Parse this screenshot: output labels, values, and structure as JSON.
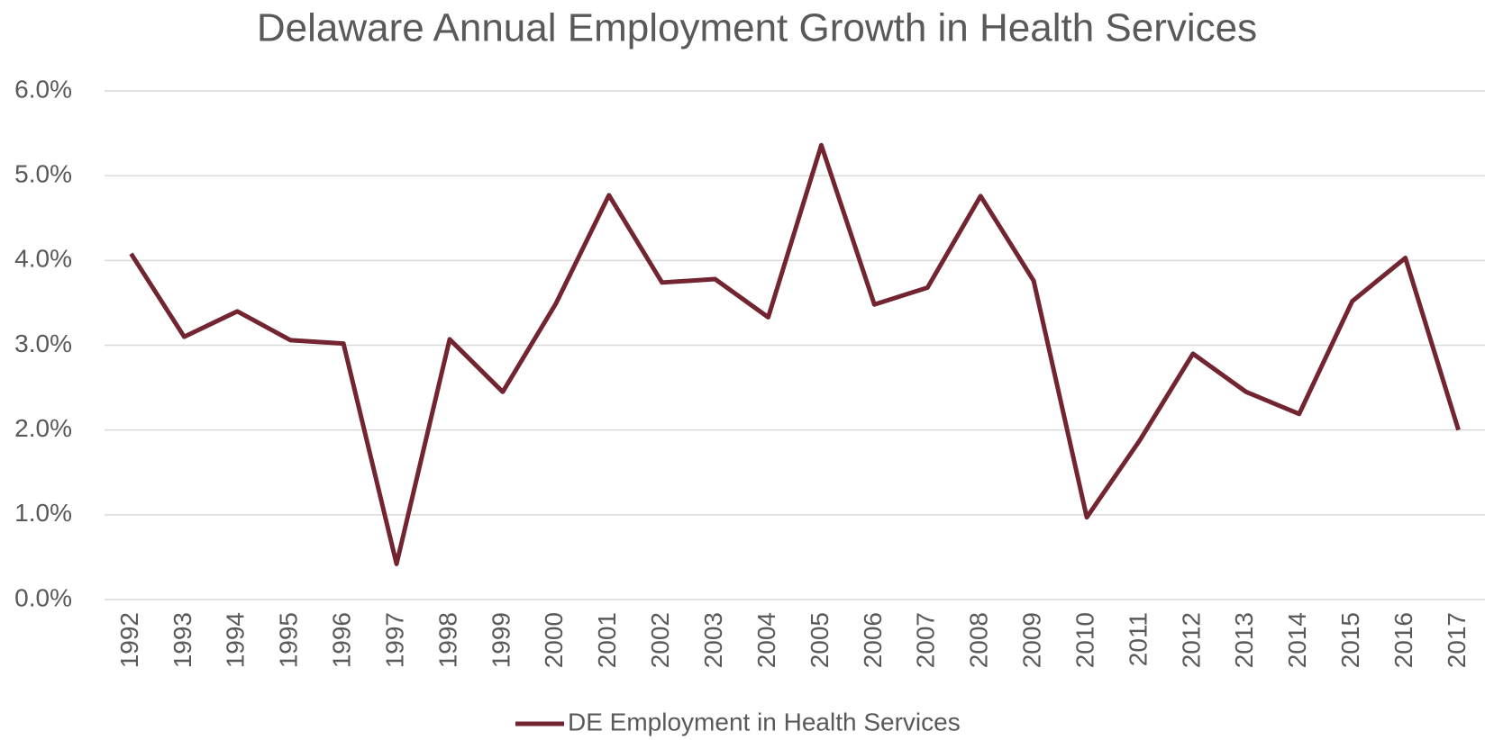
{
  "chart_data": {
    "type": "line",
    "title": "Delaware Annual Employment Growth in Health Services",
    "categories": [
      "1992",
      "1993",
      "1994",
      "1995",
      "1996",
      "1997",
      "1998",
      "1999",
      "2000",
      "2001",
      "2002",
      "2003",
      "2004",
      "2005",
      "2006",
      "2007",
      "2008",
      "2009",
      "2010",
      "2011",
      "2012",
      "2013",
      "2014",
      "2015",
      "2016",
      "2017"
    ],
    "series": [
      {
        "name": "DE Employment in Health Services",
        "color": "#722530",
        "values": [
          4.08,
          3.1,
          3.4,
          3.06,
          3.02,
          0.42,
          3.07,
          2.45,
          3.49,
          4.77,
          3.74,
          3.78,
          3.33,
          5.36,
          3.48,
          3.68,
          4.76,
          3.76,
          0.97,
          1.88,
          2.9,
          2.45,
          2.19,
          3.52,
          4.03,
          2.0
        ]
      }
    ],
    "ylim": [
      0,
      6
    ],
    "yticks": [
      {
        "value": 0,
        "label": "0.0%"
      },
      {
        "value": 1,
        "label": "1.0%"
      },
      {
        "value": 2,
        "label": "2.0%"
      },
      {
        "value": 3,
        "label": "3.0%"
      },
      {
        "value": 4,
        "label": "4.0%"
      },
      {
        "value": 5,
        "label": "5.0%"
      },
      {
        "value": 6,
        "label": "6.0%"
      }
    ],
    "grid": true,
    "legend": "bottom"
  }
}
